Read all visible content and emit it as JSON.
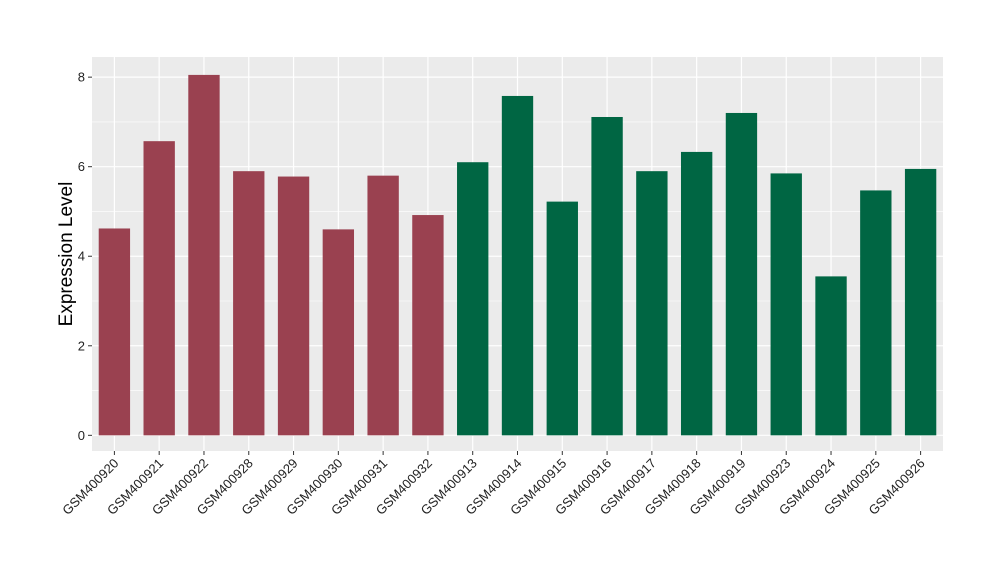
{
  "chart_data": {
    "type": "bar",
    "title": "",
    "xlabel": "",
    "ylabel": "Expression Level",
    "ylim": [
      -0.35,
      8.45
    ],
    "yticks": [
      0,
      2,
      4,
      6,
      8
    ],
    "grid": true,
    "legend": "none",
    "categories": [
      "GSM400920",
      "GSM400921",
      "GSM400922",
      "GSM400928",
      "GSM400929",
      "GSM400930",
      "GSM400931",
      "GSM400932",
      "GSM400913",
      "GSM400914",
      "GSM400915",
      "GSM400916",
      "GSM400917",
      "GSM400918",
      "GSM400919",
      "GSM400923",
      "GSM400924",
      "GSM400925",
      "GSM400926"
    ],
    "values": [
      4.62,
      6.57,
      8.05,
      5.9,
      5.78,
      4.6,
      5.8,
      4.92,
      6.1,
      7.58,
      5.22,
      7.11,
      5.9,
      6.33,
      7.2,
      5.85,
      3.55,
      5.47,
      5.95
    ],
    "groups": [
      "g1",
      "g1",
      "g1",
      "g1",
      "g1",
      "g1",
      "g1",
      "g1",
      "g2",
      "g2",
      "g2",
      "g2",
      "g2",
      "g2",
      "g2",
      "g2",
      "g2",
      "g2",
      "g2"
    ],
    "colors": {
      "g1": "#9a4150",
      "g2": "#006643",
      "panel": "#ebebeb",
      "grid": "#ffffff"
    }
  }
}
